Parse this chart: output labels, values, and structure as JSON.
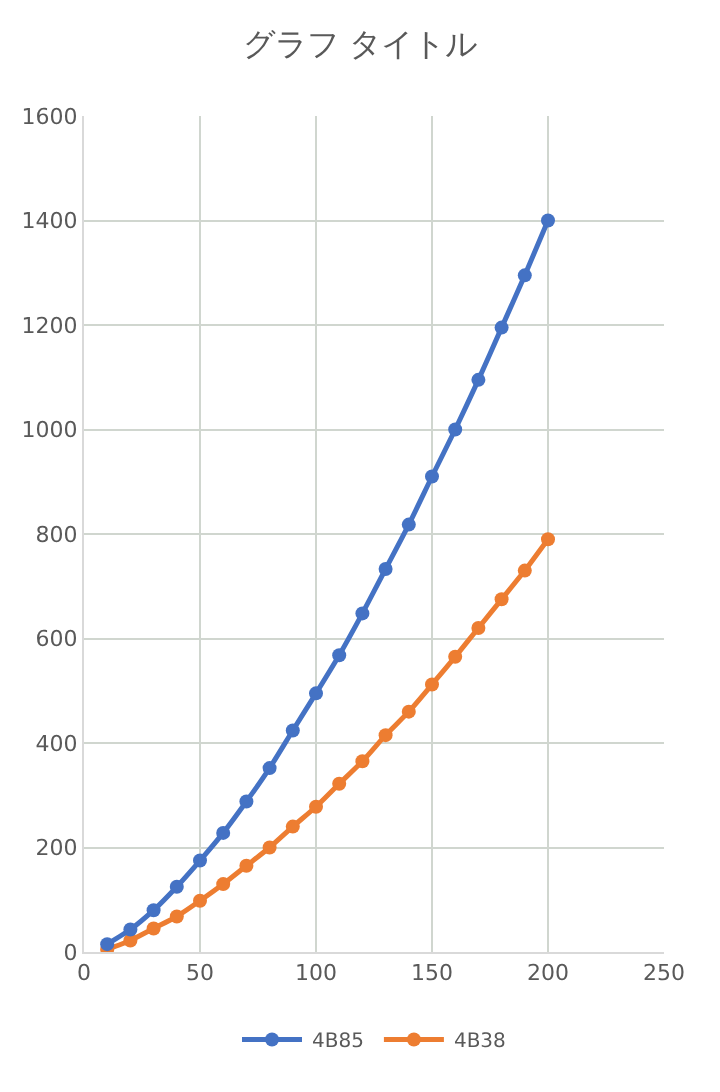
{
  "chart_data": {
    "type": "line",
    "title": "グラフ タイトル",
    "x": [
      10,
      20,
      30,
      40,
      50,
      60,
      70,
      80,
      90,
      100,
      110,
      120,
      130,
      140,
      150,
      160,
      170,
      180,
      190,
      200
    ],
    "series": [
      {
        "name": "4B85",
        "color": "#4472c4",
        "values": [
          15,
          43,
          80,
          125,
          175,
          228,
          288,
          352,
          424,
          495,
          568,
          648,
          733,
          818,
          910,
          1000,
          1095,
          1195,
          1295,
          1400
        ]
      },
      {
        "name": "4B38",
        "color": "#ed7d31",
        "values": [
          5,
          22,
          45,
          68,
          98,
          130,
          165,
          200,
          240,
          278,
          322,
          365,
          415,
          460,
          512,
          565,
          620,
          675,
          730,
          790
        ]
      }
    ],
    "xlim": [
      0,
      250
    ],
    "xticks": [
      0,
      50,
      100,
      150,
      200,
      250
    ],
    "ylim": [
      0,
      1600
    ],
    "yticks": [
      0,
      200,
      400,
      600,
      800,
      1000,
      1200,
      1400,
      1600
    ],
    "grid": true,
    "legend": "bottom",
    "marker": "circle",
    "line_style": "solid"
  }
}
